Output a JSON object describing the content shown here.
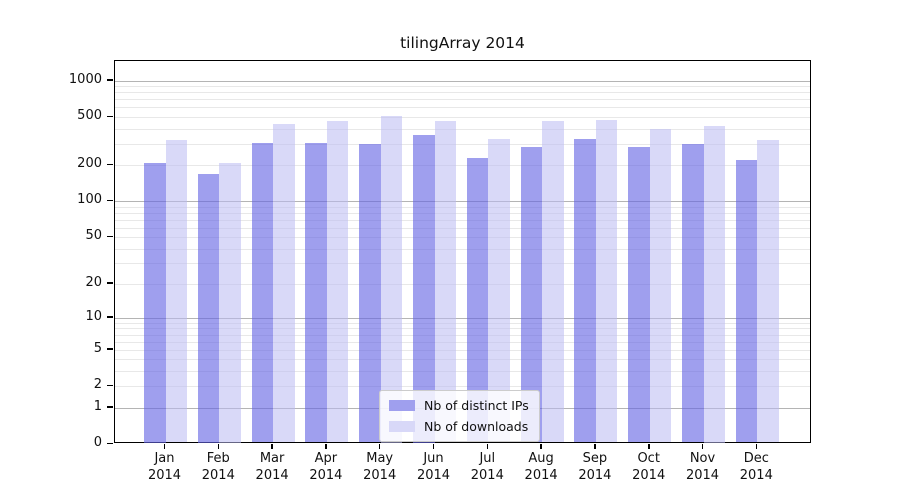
{
  "chart_data": {
    "type": "bar",
    "title": "tilingArray 2014",
    "categories": [
      "Jan",
      "Feb",
      "Mar",
      "Apr",
      "May",
      "Jun",
      "Jul",
      "Aug",
      "Sep",
      "Oct",
      "Nov",
      "Dec"
    ],
    "year_label": "2014",
    "series": [
      {
        "name": "Nb of distinct IPs",
        "color": "#9f9fee",
        "fill_rgba": "rgba(100,100,228,0.62)",
        "values": [
          210,
          170,
          305,
          305,
          300,
          355,
          230,
          280,
          330,
          280,
          300,
          220
        ]
      },
      {
        "name": "Nb of downloads",
        "color": "#d8d8f8",
        "fill_rgba": "rgba(185,185,243,0.55)",
        "values": [
          320,
          210,
          440,
          465,
          510,
          460,
          330,
          465,
          475,
          400,
          425,
          320
        ]
      }
    ],
    "y_ticks": [
      0,
      1,
      2,
      5,
      10,
      20,
      50,
      100,
      200,
      500,
      1000
    ],
    "y_scale": "log1p",
    "ylim": [
      0,
      1464
    ],
    "xlabel": "",
    "ylabel": "",
    "grid": "horizontal",
    "legend_position": "lower-center-inside",
    "colors": {
      "grid_major": "#b4b4b4",
      "grid_minor": "#e8e8e8",
      "frame": "#000000",
      "background": "#ffffff"
    }
  }
}
